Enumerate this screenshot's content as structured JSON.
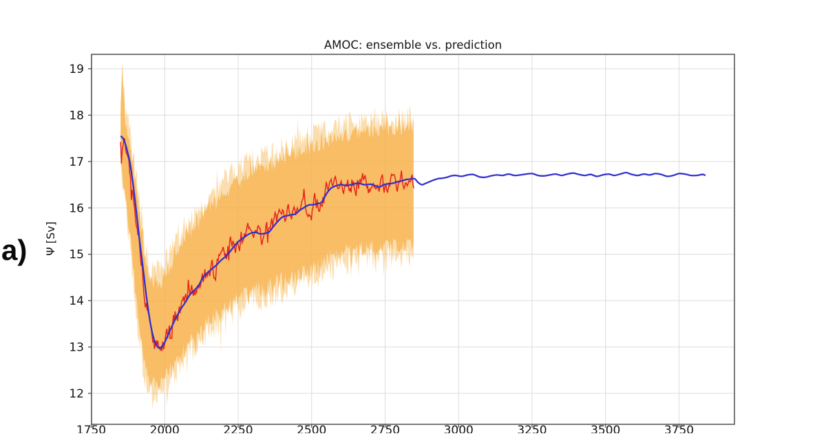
{
  "panel": {
    "label": "a)"
  },
  "chart_data": {
    "type": "line",
    "title": "AMOC: ensemble vs. prediction",
    "xlabel": "",
    "ylabel": "Ψ [Sv]",
    "grid": true,
    "legend": "none",
    "xlim": [
      1750,
      3940
    ],
    "ylim": [
      11.33,
      19.31
    ],
    "x_ticks": [
      1750,
      2000,
      2250,
      2500,
      2750,
      3000,
      3250,
      3500,
      3750
    ],
    "y_ticks": [
      12,
      13,
      14,
      15,
      16,
      17,
      18,
      19
    ],
    "colors": {
      "prediction_line": "#3030CF",
      "ensemble_member_line": "#E3241C",
      "band_core": "#F5A938",
      "band_fringe": "#F8C36E",
      "grid": "#DCDCDC",
      "spine": "#4D4D4D",
      "text": "#141414"
    },
    "series": [
      {
        "name": "ensemble spread band",
        "type": "band",
        "x_range": [
          1850,
          2848
        ],
        "fuzz_amplitude": 0.3,
        "spike_amplitude": 0.4,
        "noise_seed": 7,
        "points_year_low_high": [
          [
            1850,
            17.1,
            18.0
          ],
          [
            1853,
            16.9,
            18.55
          ],
          [
            1856,
            16.7,
            18.93
          ],
          [
            1859,
            16.5,
            18.6
          ],
          [
            1862,
            16.35,
            18.3
          ],
          [
            1866,
            16.1,
            18.0
          ],
          [
            1870,
            15.9,
            17.85
          ],
          [
            1875,
            15.65,
            17.7
          ],
          [
            1880,
            15.4,
            17.55
          ],
          [
            1885,
            15.1,
            17.3
          ],
          [
            1890,
            14.8,
            17.05
          ],
          [
            1895,
            14.45,
            16.85
          ],
          [
            1900,
            14.1,
            16.6
          ],
          [
            1905,
            13.8,
            16.35
          ],
          [
            1910,
            13.5,
            16.1
          ],
          [
            1915,
            13.25,
            15.9
          ],
          [
            1920,
            13.0,
            15.65
          ],
          [
            1925,
            12.8,
            15.4
          ],
          [
            1930,
            12.6,
            15.2
          ],
          [
            1935,
            12.45,
            15.0
          ],
          [
            1940,
            12.3,
            14.85
          ],
          [
            1945,
            12.2,
            14.7
          ],
          [
            1950,
            12.15,
            14.6
          ],
          [
            1960,
            12.1,
            14.5
          ],
          [
            1970,
            12.08,
            14.45
          ],
          [
            1980,
            12.1,
            14.5
          ],
          [
            1990,
            12.15,
            14.55
          ],
          [
            2000,
            12.25,
            14.65
          ],
          [
            2015,
            12.4,
            14.85
          ],
          [
            2030,
            12.55,
            15.0
          ],
          [
            2050,
            12.7,
            15.2
          ],
          [
            2070,
            12.85,
            15.45
          ],
          [
            2090,
            13.0,
            15.6
          ],
          [
            2110,
            13.1,
            15.75
          ],
          [
            2130,
            13.3,
            15.9
          ],
          [
            2150,
            13.45,
            16.05
          ],
          [
            2170,
            13.55,
            16.2
          ],
          [
            2190,
            13.65,
            16.3
          ],
          [
            2210,
            13.75,
            16.45
          ],
          [
            2230,
            13.85,
            16.6
          ],
          [
            2250,
            13.95,
            16.7
          ],
          [
            2275,
            14.05,
            16.8
          ],
          [
            2300,
            14.15,
            16.9
          ],
          [
            2325,
            14.1,
            16.95
          ],
          [
            2350,
            14.2,
            17.0
          ],
          [
            2375,
            14.3,
            17.1
          ],
          [
            2400,
            14.35,
            17.2
          ],
          [
            2425,
            14.4,
            17.25
          ],
          [
            2450,
            14.45,
            17.3
          ],
          [
            2475,
            14.55,
            17.35
          ],
          [
            2500,
            14.6,
            17.4
          ],
          [
            2525,
            14.65,
            17.45
          ],
          [
            2550,
            14.75,
            17.55
          ],
          [
            2575,
            14.85,
            17.6
          ],
          [
            2600,
            14.9,
            17.65
          ],
          [
            2625,
            14.95,
            17.65
          ],
          [
            2650,
            15.0,
            17.7
          ],
          [
            2675,
            15.0,
            17.7
          ],
          [
            2700,
            15.05,
            17.75
          ],
          [
            2725,
            15.0,
            17.8
          ],
          [
            2750,
            15.05,
            17.85
          ],
          [
            2775,
            15.1,
            17.8
          ],
          [
            2800,
            15.1,
            17.85
          ],
          [
            2825,
            15.1,
            17.85
          ],
          [
            2848,
            15.1,
            17.9
          ]
        ]
      },
      {
        "name": "ensemble member (noisy)",
        "type": "line",
        "x_range": [
          1850,
          2848
        ],
        "hf_noise_amplitude": 0.3,
        "noise_seed": 13,
        "points_year_value": [
          [
            1850,
            17.4
          ],
          [
            1858,
            17.55
          ],
          [
            1870,
            17.25
          ],
          [
            1890,
            16.5
          ],
          [
            1910,
            15.6
          ],
          [
            1930,
            14.3
          ],
          [
            1950,
            13.45
          ],
          [
            1970,
            13.0
          ],
          [
            1990,
            12.95
          ],
          [
            2010,
            13.2
          ],
          [
            2030,
            13.55
          ],
          [
            2050,
            13.7
          ],
          [
            2070,
            14.05
          ],
          [
            2090,
            14.1
          ],
          [
            2110,
            14.35
          ],
          [
            2130,
            14.45
          ],
          [
            2150,
            14.75
          ],
          [
            2170,
            14.6
          ],
          [
            2190,
            14.9
          ],
          [
            2210,
            15.0
          ],
          [
            2230,
            15.2
          ],
          [
            2250,
            15.2
          ],
          [
            2270,
            15.45
          ],
          [
            2290,
            15.4
          ],
          [
            2310,
            15.55
          ],
          [
            2330,
            15.35
          ],
          [
            2350,
            15.5
          ],
          [
            2370,
            15.65
          ],
          [
            2390,
            15.85
          ],
          [
            2410,
            15.75
          ],
          [
            2430,
            15.9
          ],
          [
            2450,
            15.95
          ],
          [
            2470,
            16.05
          ],
          [
            2490,
            16.0
          ],
          [
            2510,
            16.15
          ],
          [
            2530,
            16.05
          ],
          [
            2550,
            16.35
          ],
          [
            2570,
            16.4
          ],
          [
            2590,
            16.55
          ],
          [
            2610,
            16.45
          ],
          [
            2630,
            16.55
          ],
          [
            2650,
            16.45
          ],
          [
            2670,
            16.55
          ],
          [
            2690,
            16.5
          ],
          [
            2710,
            16.4
          ],
          [
            2730,
            16.5
          ],
          [
            2750,
            16.45
          ],
          [
            2770,
            16.55
          ],
          [
            2790,
            16.5
          ],
          [
            2810,
            16.6
          ],
          [
            2830,
            16.55
          ],
          [
            2848,
            16.6
          ]
        ]
      },
      {
        "name": "prediction",
        "type": "line",
        "x_range": [
          1850,
          3840
        ],
        "points_year_value": [
          [
            1850,
            17.55
          ],
          [
            1858,
            17.5
          ],
          [
            1866,
            17.38
          ],
          [
            1874,
            17.2
          ],
          [
            1882,
            16.97
          ],
          [
            1890,
            16.62
          ],
          [
            1898,
            16.22
          ],
          [
            1906,
            15.78
          ],
          [
            1914,
            15.33
          ],
          [
            1922,
            14.92
          ],
          [
            1930,
            14.5
          ],
          [
            1938,
            14.08
          ],
          [
            1946,
            13.72
          ],
          [
            1954,
            13.42
          ],
          [
            1962,
            13.2
          ],
          [
            1970,
            13.06
          ],
          [
            1980,
            12.98
          ],
          [
            1990,
            13.01
          ],
          [
            2000,
            13.1
          ],
          [
            2012,
            13.27
          ],
          [
            2025,
            13.45
          ],
          [
            2040,
            13.65
          ],
          [
            2055,
            13.82
          ],
          [
            2070,
            13.96
          ],
          [
            2085,
            14.12
          ],
          [
            2100,
            14.22
          ],
          [
            2115,
            14.32
          ],
          [
            2130,
            14.5
          ],
          [
            2145,
            14.6
          ],
          [
            2160,
            14.68
          ],
          [
            2175,
            14.76
          ],
          [
            2190,
            14.86
          ],
          [
            2205,
            14.94
          ],
          [
            2220,
            15.04
          ],
          [
            2235,
            15.16
          ],
          [
            2250,
            15.27
          ],
          [
            2265,
            15.34
          ],
          [
            2280,
            15.41
          ],
          [
            2295,
            15.46
          ],
          [
            2310,
            15.47
          ],
          [
            2325,
            15.44
          ],
          [
            2340,
            15.45
          ],
          [
            2355,
            15.48
          ],
          [
            2370,
            15.6
          ],
          [
            2385,
            15.71
          ],
          [
            2400,
            15.8
          ],
          [
            2415,
            15.83
          ],
          [
            2430,
            15.85
          ],
          [
            2445,
            15.87
          ],
          [
            2460,
            15.95
          ],
          [
            2475,
            16.01
          ],
          [
            2490,
            16.06
          ],
          [
            2505,
            16.07
          ],
          [
            2520,
            16.09
          ],
          [
            2535,
            16.13
          ],
          [
            2550,
            16.3
          ],
          [
            2565,
            16.42
          ],
          [
            2580,
            16.47
          ],
          [
            2600,
            16.5
          ],
          [
            2620,
            16.48
          ],
          [
            2640,
            16.51
          ],
          [
            2660,
            16.53
          ],
          [
            2680,
            16.5
          ],
          [
            2700,
            16.51
          ],
          [
            2715,
            16.48
          ],
          [
            2730,
            16.45
          ],
          [
            2745,
            16.5
          ],
          [
            2760,
            16.52
          ],
          [
            2775,
            16.53
          ],
          [
            2790,
            16.56
          ],
          [
            2805,
            16.58
          ],
          [
            2820,
            16.61
          ],
          [
            2835,
            16.62
          ],
          [
            2850,
            16.63
          ],
          [
            2862,
            16.55
          ],
          [
            2875,
            16.5
          ],
          [
            2888,
            16.53
          ],
          [
            2900,
            16.56
          ],
          [
            2915,
            16.6
          ],
          [
            2930,
            16.63
          ],
          [
            2945,
            16.64
          ],
          [
            2960,
            16.66
          ],
          [
            2975,
            16.69
          ],
          [
            2990,
            16.7
          ],
          [
            3010,
            16.68
          ],
          [
            3030,
            16.71
          ],
          [
            3050,
            16.72
          ],
          [
            3070,
            16.67
          ],
          [
            3090,
            16.66
          ],
          [
            3110,
            16.69
          ],
          [
            3130,
            16.71
          ],
          [
            3150,
            16.7
          ],
          [
            3170,
            16.73
          ],
          [
            3190,
            16.7
          ],
          [
            3210,
            16.71
          ],
          [
            3230,
            16.73
          ],
          [
            3250,
            16.74
          ],
          [
            3270,
            16.7
          ],
          [
            3290,
            16.69
          ],
          [
            3310,
            16.71
          ],
          [
            3330,
            16.73
          ],
          [
            3350,
            16.7
          ],
          [
            3370,
            16.73
          ],
          [
            3390,
            16.75
          ],
          [
            3410,
            16.72
          ],
          [
            3430,
            16.7
          ],
          [
            3450,
            16.72
          ],
          [
            3470,
            16.68
          ],
          [
            3490,
            16.71
          ],
          [
            3510,
            16.73
          ],
          [
            3530,
            16.7
          ],
          [
            3550,
            16.73
          ],
          [
            3570,
            16.76
          ],
          [
            3590,
            16.72
          ],
          [
            3610,
            16.7
          ],
          [
            3630,
            16.73
          ],
          [
            3650,
            16.71
          ],
          [
            3670,
            16.74
          ],
          [
            3690,
            16.72
          ],
          [
            3710,
            16.68
          ],
          [
            3730,
            16.7
          ],
          [
            3750,
            16.74
          ],
          [
            3770,
            16.73
          ],
          [
            3790,
            16.7
          ],
          [
            3810,
            16.7
          ],
          [
            3830,
            16.72
          ],
          [
            3840,
            16.7
          ]
        ]
      }
    ]
  }
}
